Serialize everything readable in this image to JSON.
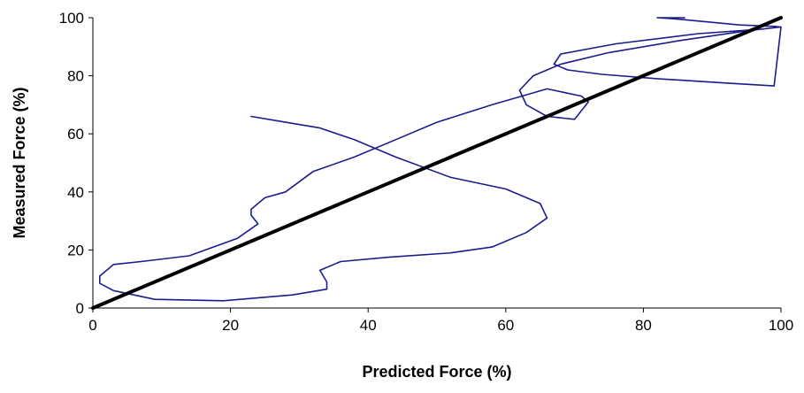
{
  "chart_data": {
    "type": "line",
    "title": "",
    "xlabel": "Predicted Force (%)",
    "ylabel": "Measured Force (%)",
    "xlim": [
      0,
      100
    ],
    "ylim": [
      0,
      100
    ],
    "xticks": [
      0,
      20,
      40,
      60,
      80,
      100
    ],
    "yticks": [
      0,
      20,
      40,
      60,
      80,
      100
    ],
    "xtick_labels": [
      "0",
      "20",
      "40",
      "60",
      "80",
      "100"
    ],
    "ytick_labels": [
      "0",
      "20",
      "40",
      "60",
      "80",
      "100"
    ],
    "grid": false,
    "series": [
      {
        "color": "#1c1c8c",
        "x": [
          86,
          82,
          85,
          94,
          99,
          100,
          97,
          88,
          76,
          68,
          67,
          69,
          74,
          82,
          92,
          99,
          100,
          95,
          85,
          75,
          68,
          64,
          62,
          63,
          66,
          70,
          72,
          71,
          66,
          58,
          50,
          44,
          38,
          32,
          28,
          25,
          23,
          23,
          24,
          21,
          14,
          7,
          3,
          1,
          1,
          3,
          9,
          19,
          29,
          34,
          34,
          33,
          36,
          43,
          52,
          58,
          63,
          66,
          65,
          60,
          52,
          44,
          38,
          33,
          28,
          23
        ],
        "y": [
          100,
          100,
          99.5,
          97.5,
          97,
          96.8,
          96,
          94.5,
          91,
          87.5,
          84,
          82,
          80.5,
          79,
          77.5,
          76.5,
          96.8,
          95.5,
          92,
          88,
          84,
          80,
          75,
          70,
          66,
          65,
          71,
          73,
          75.5,
          70,
          64,
          58,
          52,
          47,
          40,
          38,
          34,
          32,
          29,
          24,
          18,
          16,
          15,
          11,
          8.5,
          6,
          3,
          2.5,
          4.5,
          6.5,
          9,
          13,
          16,
          17.5,
          19,
          21,
          26,
          31,
          36,
          41,
          45,
          52,
          58,
          62,
          64,
          66
        ]
      },
      {
        "color": "#000000",
        "x": [
          0,
          100
        ],
        "y": [
          0,
          100
        ]
      }
    ]
  }
}
